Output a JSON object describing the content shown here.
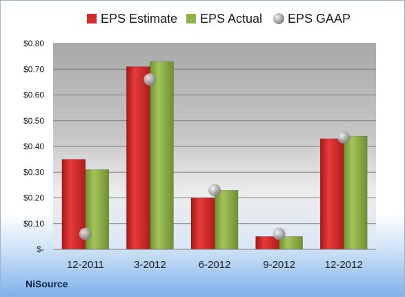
{
  "chart_data": {
    "type": "bar",
    "categories": [
      "12-2011",
      "3-2012",
      "6-2012",
      "9-2012",
      "12-2012"
    ],
    "series": [
      {
        "name": "EPS Estimate",
        "kind": "bar",
        "values": [
          0.35,
          0.71,
          0.2,
          0.05,
          0.43
        ],
        "color": "#d42b2b"
      },
      {
        "name": "EPS Actual",
        "kind": "bar",
        "values": [
          0.31,
          0.73,
          0.23,
          0.05,
          0.44
        ],
        "color": "#8fb24a"
      },
      {
        "name": "EPS GAAP",
        "kind": "marker",
        "values": [
          0.06,
          0.66,
          0.23,
          0.06,
          0.435
        ],
        "color": "#a8a8a8"
      }
    ],
    "y_ticks": [
      "$-",
      "$0.10",
      "$0.20",
      "$0.30",
      "$0.40",
      "$0.50",
      "$0.60",
      "$0.70",
      "$0.80"
    ],
    "ylim": [
      0,
      0.8
    ],
    "grid": true,
    "legend_position": "top"
  },
  "company_label": "NiSource"
}
